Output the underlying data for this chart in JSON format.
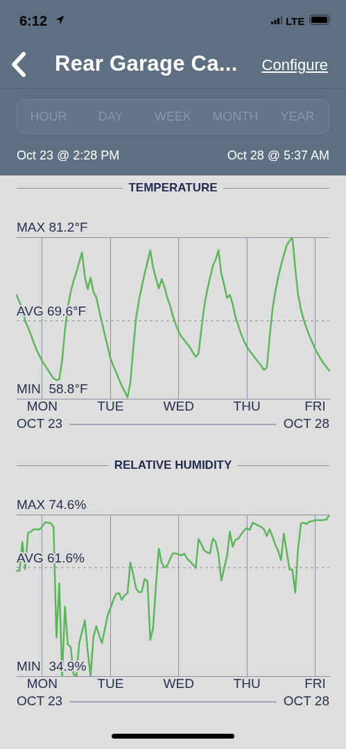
{
  "chart_data": [
    {
      "type": "other",
      "title": "Rear Garage Ca...",
      "annotations": [
        "6:12",
        "LTE",
        "Configure",
        "HOUR",
        "DAY",
        "WEEK",
        "MONTH",
        "YEAR",
        "Oct 23 @ 2:28 PM",
        "Oct 28 @ 5:37 AM"
      ]
    },
    {
      "type": "line",
      "title": "TEMPERATURE",
      "color": "#5db55b",
      "marker": "none",
      "grid": true,
      "categories": [
        null,
        null,
        null,
        null,
        null,
        null,
        null,
        null,
        null,
        "MON",
        null,
        null,
        null,
        null,
        null,
        null,
        null,
        null,
        null,
        null,
        null,
        null,
        null,
        null,
        null,
        null,
        null,
        null,
        null,
        null,
        null,
        null,
        null,
        "TUE",
        null,
        null,
        null,
        null,
        null,
        null,
        null,
        null,
        null,
        null,
        null,
        null,
        null,
        null,
        null,
        null,
        null,
        null,
        null,
        null,
        null,
        null,
        null,
        "WED",
        null,
        null,
        null,
        null,
        null,
        null,
        null,
        null,
        null,
        null,
        null,
        null,
        null,
        null,
        null,
        null,
        null,
        null,
        null,
        null,
        null,
        null,
        null,
        "THU",
        null,
        null,
        null,
        null,
        null,
        null,
        null,
        null,
        null,
        null,
        null,
        null,
        null,
        null,
        null,
        null,
        null,
        null,
        null,
        null,
        null,
        null,
        null,
        "FRI",
        null,
        null,
        null,
        null,
        null
      ],
      "values": [
        73.2,
        72.2,
        71.3,
        69.6,
        68.7,
        67.7,
        66.6,
        65.6,
        64.8,
        64.0,
        63.4,
        62.8,
        62.2,
        61.6,
        61.4,
        61.5,
        64.1,
        68.3,
        71.5,
        73.6,
        75.1,
        76.3,
        77.7,
        79.1,
        75.7,
        74.0,
        75.6,
        73.6,
        72.9,
        71.1,
        69.4,
        67.7,
        66.1,
        64.4,
        63.4,
        62.5,
        61.5,
        60.6,
        59.8,
        59.0,
        61.0,
        65.7,
        69.9,
        72.4,
        74.3,
        76.1,
        77.7,
        79.4,
        77.0,
        75.5,
        74.1,
        75.4,
        74.3,
        72.8,
        71.7,
        70.2,
        69.1,
        68.1,
        67.4,
        66.9,
        66.4,
        65.9,
        65.2,
        64.6,
        65.1,
        68.5,
        71.6,
        73.8,
        75.5,
        77.2,
        78.1,
        79.4,
        76.1,
        74.6,
        72.8,
        73.2,
        71.9,
        70.1,
        68.9,
        67.7,
        66.8,
        66.0,
        65.4,
        64.9,
        64.4,
        63.9,
        63.4,
        62.8,
        63.1,
        67.4,
        71.2,
        73.7,
        75.7,
        77.3,
        78.7,
        80.1,
        80.7,
        81.2,
        76.9,
        73.2,
        71.2,
        69.7,
        68.6,
        67.5,
        66.6,
        65.7,
        65.0,
        64.3,
        63.7,
        63.2,
        62.7
      ],
      "ylim": [
        58.8,
        81.2
      ],
      "yticks": [
        {
          "value": 81.2,
          "label": "81.2°F"
        },
        {
          "value": 58.8,
          "label": "58.8°F"
        }
      ],
      "ref_lines": [
        {
          "axis": "y",
          "value": 69.6,
          "label": "AVG 69.6°F",
          "line_style": "dashed"
        }
      ],
      "annotations": [
        "MAX",
        "MIN",
        "OCT 23",
        "OCT 28"
      ]
    },
    {
      "type": "line",
      "title": "RELATIVE HUMIDITY",
      "color": "#5db55b",
      "marker": "none",
      "grid": true,
      "categories": [
        null,
        null,
        null,
        null,
        null,
        null,
        null,
        null,
        null,
        "MON",
        null,
        null,
        null,
        null,
        null,
        null,
        null,
        null,
        null,
        null,
        null,
        null,
        null,
        null,
        null,
        null,
        null,
        null,
        null,
        null,
        null,
        null,
        null,
        "TUE",
        null,
        null,
        null,
        null,
        null,
        null,
        null,
        null,
        null,
        null,
        null,
        null,
        null,
        null,
        null,
        null,
        null,
        null,
        null,
        null,
        null,
        null,
        null,
        "WED",
        null,
        null,
        null,
        null,
        null,
        null,
        null,
        null,
        null,
        null,
        null,
        null,
        null,
        null,
        null,
        null,
        null,
        null,
        null,
        null,
        null,
        null,
        null,
        "THU",
        null,
        null,
        null,
        null,
        null,
        null,
        null,
        null,
        null,
        null,
        null,
        null,
        null,
        null,
        null,
        null,
        null,
        null,
        null,
        null,
        null,
        null,
        null,
        "FRI",
        null,
        null,
        null,
        null,
        null
      ],
      "values": [
        60.8,
        60.8,
        67.9,
        61.2,
        70.1,
        70.4,
        71.0,
        71.0,
        70.9,
        71.6,
        72.7,
        72.6,
        72.5,
        71.5,
        44.4,
        57.7,
        34.9,
        52.0,
        42.7,
        42.1,
        35.4,
        34.9,
        43.0,
        45.8,
        48.6,
        41.0,
        34.9,
        44.4,
        47.2,
        45.1,
        43.0,
        46.4,
        49.8,
        51.6,
        53.6,
        55.1,
        55.3,
        53.7,
        54.8,
        55.3,
        62.8,
        59.9,
        56.5,
        55.5,
        55.6,
        58.8,
        58.3,
        43.8,
        46.7,
        57.1,
        66.2,
        62.8,
        61.6,
        62.1,
        63.7,
        65.1,
        65.0,
        64.8,
        64.6,
        65.0,
        63.7,
        63.1,
        62.3,
        61.5,
        68.6,
        67.3,
        65.8,
        65.3,
        65.1,
        68.7,
        67.9,
        64.7,
        58.4,
        61.4,
        64.4,
        70.4,
        66.7,
        68.4,
        68.7,
        69.8,
        70.7,
        71.3,
        70.8,
        72.6,
        72.3,
        71.9,
        71.6,
        71.0,
        69.3,
        71.0,
        69.2,
        67.2,
        65.7,
        63.4,
        69.9,
        65.5,
        61.1,
        61.1,
        55.4,
        66.3,
        72.4,
        72.6,
        72.3,
        72.9,
        73.0,
        73.2,
        73.3,
        73.2,
        73.3,
        73.4,
        74.6
      ],
      "ylim": [
        34.9,
        74.6
      ],
      "yticks": [
        {
          "value": 74.6,
          "label": "74.6%"
        },
        {
          "value": 34.9,
          "label": "34.9%"
        }
      ],
      "ref_lines": [
        {
          "axis": "y",
          "value": 61.6,
          "label": "AVG 61.6%",
          "line_style": "dashed"
        }
      ],
      "annotations": [
        "MAX",
        "MIN",
        "OCT 23",
        "OCT 28"
      ]
    }
  ]
}
